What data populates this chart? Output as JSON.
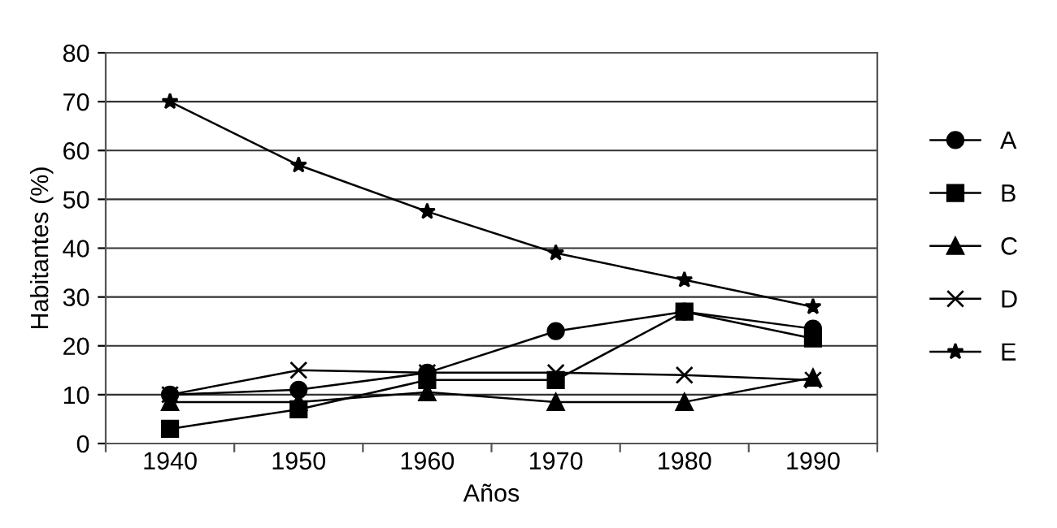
{
  "chart_data": {
    "type": "line",
    "xlabel": "Años",
    "ylabel": "Habitantes (%)",
    "categories": [
      "1940",
      "1950",
      "1960",
      "1970",
      "1980",
      "1990"
    ],
    "ylim": [
      0,
      80
    ],
    "yticks": [
      0,
      10,
      20,
      30,
      40,
      50,
      60,
      70,
      80
    ],
    "grid": "y",
    "legend": "right",
    "series": [
      {
        "name": "A",
        "color": "#000000",
        "marker": "circle",
        "values": [
          10,
          11,
          14.5,
          23,
          27,
          23.5
        ]
      },
      {
        "name": "B",
        "color": "#000000",
        "marker": "square",
        "values": [
          3,
          7,
          13,
          13,
          27,
          21.5
        ]
      },
      {
        "name": "C",
        "color": "#000000",
        "marker": "triangle",
        "values": [
          8.5,
          8.5,
          10.5,
          8.5,
          8.5,
          13.5
        ]
      },
      {
        "name": "D",
        "color": "#000000",
        "marker": "cross",
        "values": [
          10,
          15,
          14.5,
          14.5,
          14,
          13
        ]
      },
      {
        "name": "E",
        "color": "#000000",
        "marker": "star",
        "values": [
          70,
          57,
          47.5,
          39,
          33.5,
          28
        ]
      }
    ]
  }
}
